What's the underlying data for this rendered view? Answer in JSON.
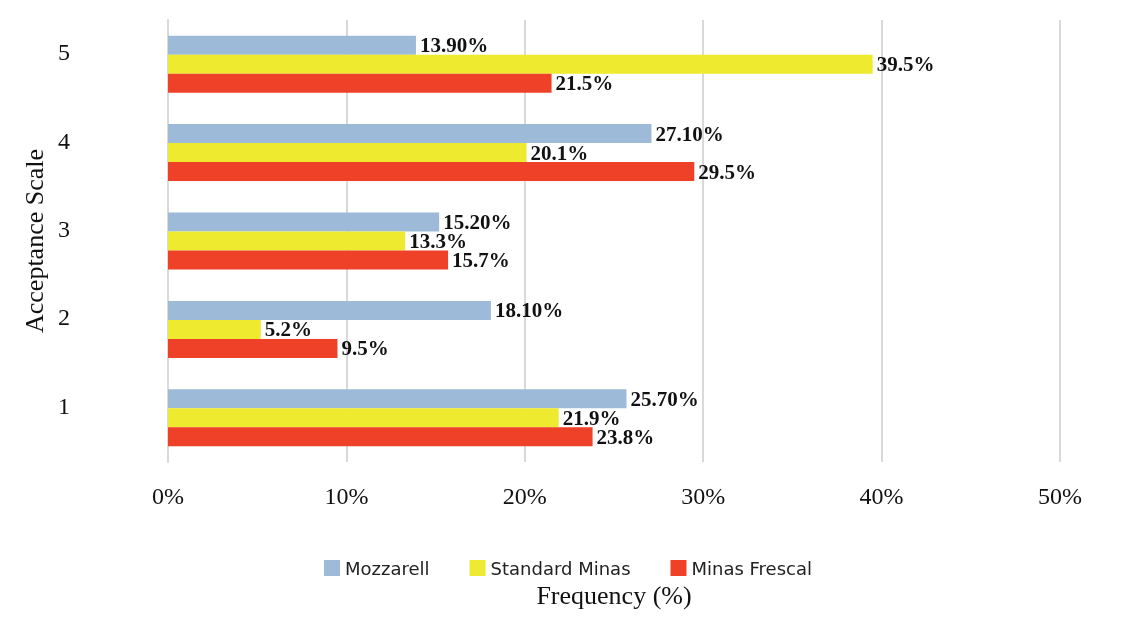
{
  "chart_data": {
    "type": "bar",
    "orientation": "horizontal",
    "xlabel": "Frequency (%)",
    "ylabel": "Acceptance Scale",
    "categories": [
      "5",
      "4",
      "3",
      "2",
      "1"
    ],
    "series": [
      {
        "name": "Mozzarell",
        "color": "#9dbbd9",
        "values": [
          13.9,
          27.1,
          15.2,
          18.1,
          25.7
        ],
        "value_labels": [
          "13.90%",
          "27.10%",
          "15.20%",
          "18.10%",
          "25.70%"
        ]
      },
      {
        "name": "Standard Minas",
        "color": "#eeea30",
        "values": [
          39.5,
          20.1,
          13.3,
          5.2,
          21.9
        ],
        "value_labels": [
          "39.5%",
          "20.1%",
          "13.3%",
          "5.2%",
          "21.9%"
        ]
      },
      {
        "name": "Minas Frescal",
        "color": "#ee4128",
        "values": [
          21.5,
          29.5,
          15.7,
          9.5,
          23.8
        ],
        "value_labels": [
          "21.5%",
          "29.5%",
          "15.7%",
          "9.5%",
          "23.8%"
        ]
      }
    ],
    "xlim": [
      0,
      50
    ],
    "xticks": [
      {
        "value": 0,
        "label": "0%"
      },
      {
        "value": 10,
        "label": "10%"
      },
      {
        "value": 20,
        "label": "20%"
      },
      {
        "value": 30,
        "label": "30%"
      },
      {
        "value": 40,
        "label": "40%"
      },
      {
        "value": 50,
        "label": "50%"
      }
    ],
    "grid": "x",
    "legend": "bottom"
  }
}
